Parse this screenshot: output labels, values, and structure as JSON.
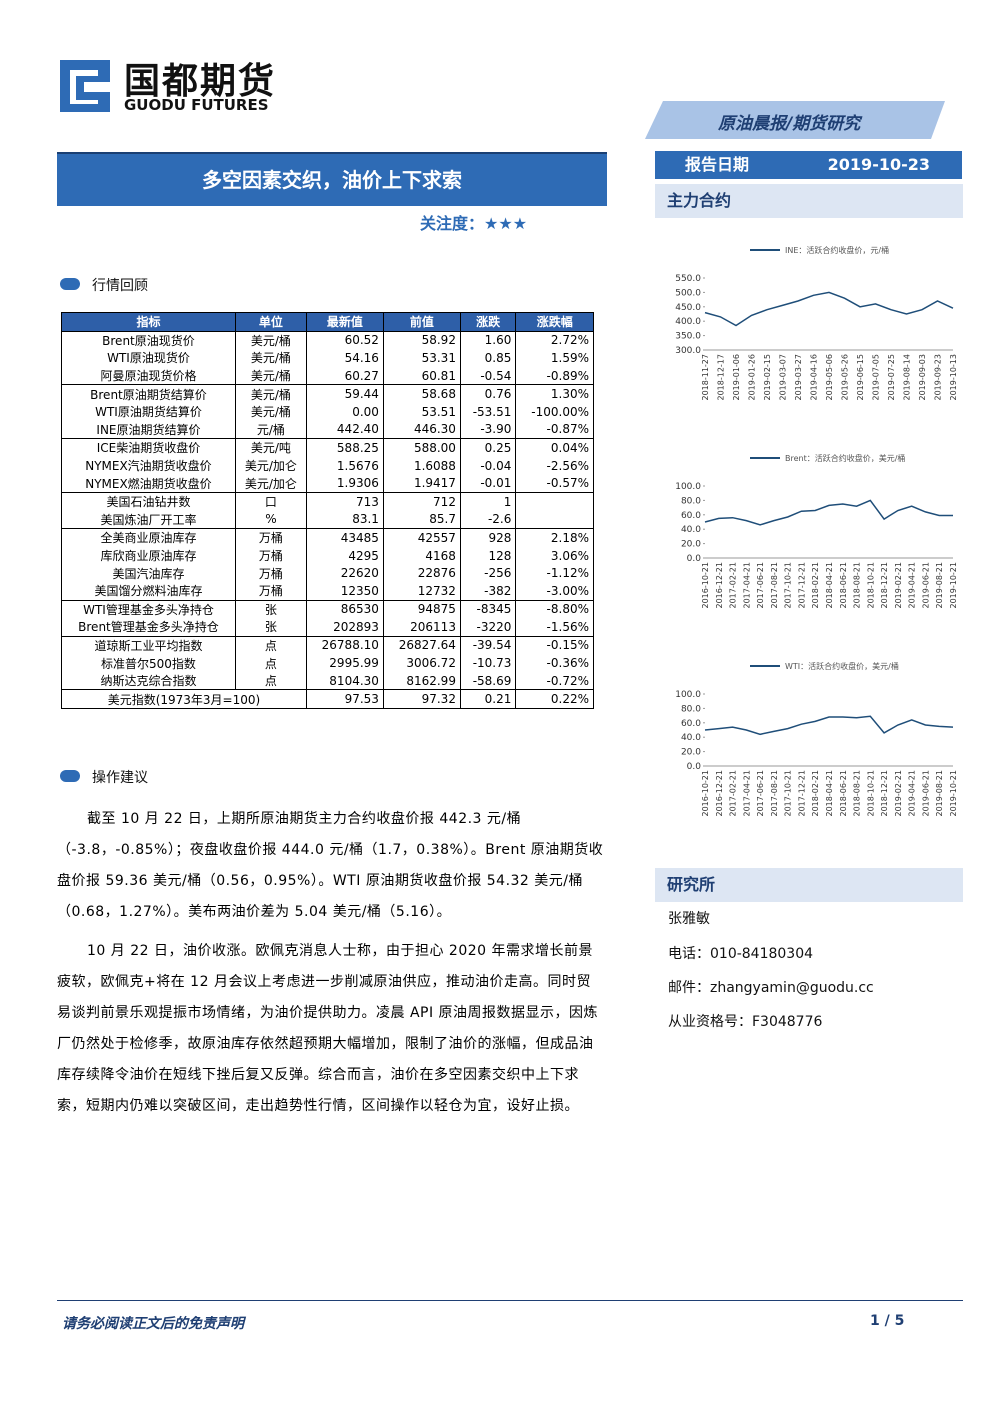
{
  "header": {
    "logo_cn": "国都期货",
    "logo_en": "GUODU FUTURES",
    "tag": "原油晨报/期货研究"
  },
  "title": "多空因素交织，油价上下求索",
  "attention": "关注度：★★★",
  "report_date": {
    "label": "报告日期",
    "value": "2019-10-23"
  },
  "main_contract": "主力合约",
  "chart_data": [
    {
      "type": "line",
      "legend": "INE：活跃合约收盘价，元/桶",
      "categories": [
        "2018-11-27",
        "2018-12-17",
        "2019-01-06",
        "2019-01-26",
        "2019-02-15",
        "2019-03-07",
        "2019-03-27",
        "2019-04-16",
        "2019-05-06",
        "2019-05-26",
        "2019-06-15",
        "2019-07-05",
        "2019-07-25",
        "2019-08-14",
        "2019-09-03",
        "2019-09-23",
        "2019-10-13"
      ],
      "series": [
        {
          "name": "INE",
          "color": "#1f4e79",
          "values": [
            430,
            415,
            385,
            420,
            440,
            455,
            470,
            490,
            500,
            480,
            450,
            460,
            440,
            425,
            440,
            470,
            445
          ]
        }
      ],
      "ylim": [
        300,
        550
      ],
      "yticks": [
        {
          "value": 300,
          "label": "300.0"
        },
        {
          "value": 350,
          "label": "350.0"
        },
        {
          "value": 400,
          "label": "400.0"
        },
        {
          "value": 450,
          "label": "450.0"
        },
        {
          "value": 500,
          "label": "500.0"
        },
        {
          "value": 550,
          "label": "550.0"
        }
      ]
    },
    {
      "type": "line",
      "legend": "Brent：活跃合约收盘价，美元/桶",
      "categories": [
        "2016-10-21",
        "2016-12-21",
        "2017-02-21",
        "2017-04-21",
        "2017-06-21",
        "2017-08-21",
        "2017-10-21",
        "2017-12-21",
        "2018-02-21",
        "2018-04-21",
        "2018-06-21",
        "2018-08-21",
        "2018-10-21",
        "2018-12-21",
        "2019-02-21",
        "2019-04-21",
        "2019-06-21",
        "2019-08-21",
        "2019-10-21"
      ],
      "series": [
        {
          "name": "Brent",
          "color": "#1f4e79",
          "values": [
            50,
            55,
            56,
            52,
            46,
            52,
            57,
            65,
            66,
            73,
            75,
            72,
            80,
            54,
            66,
            72,
            64,
            59,
            59
          ]
        }
      ],
      "ylim": [
        0,
        100
      ],
      "yticks": [
        {
          "value": 0,
          "label": "0.0"
        },
        {
          "value": 20,
          "label": "20.0"
        },
        {
          "value": 40,
          "label": "40.0"
        },
        {
          "value": 60,
          "label": "60.0"
        },
        {
          "value": 80,
          "label": "80.0"
        },
        {
          "value": 100,
          "label": "100.0"
        }
      ]
    },
    {
      "type": "line",
      "legend": "WTI：活跃合约收盘价，美元/桶",
      "categories": [
        "2016-10-21",
        "2016-12-21",
        "2017-02-21",
        "2017-04-21",
        "2017-06-21",
        "2017-08-21",
        "2017-10-21",
        "2017-12-21",
        "2018-02-21",
        "2018-04-21",
        "2018-06-21",
        "2018-08-21",
        "2018-10-21",
        "2018-12-21",
        "2019-02-21",
        "2019-04-21",
        "2019-06-21",
        "2019-08-21",
        "2019-10-21"
      ],
      "series": [
        {
          "name": "WTI",
          "color": "#1f4e79",
          "values": [
            50,
            52,
            54,
            50,
            44,
            48,
            52,
            58,
            62,
            68,
            68,
            67,
            69,
            46,
            57,
            64,
            57,
            55,
            54
          ]
        }
      ],
      "ylim": [
        0,
        100
      ],
      "yticks": [
        {
          "value": 0,
          "label": "0.0"
        },
        {
          "value": 20,
          "label": "20.0"
        },
        {
          "value": 40,
          "label": "40.0"
        },
        {
          "value": 60,
          "label": "60.0"
        },
        {
          "value": 80,
          "label": "80.0"
        },
        {
          "value": 100,
          "label": "100.0"
        }
      ]
    }
  ],
  "market_review": "行情回顾",
  "table": {
    "columns": [
      "指标",
      "单位",
      "最新值",
      "前值",
      "涨跌",
      "涨跌幅"
    ],
    "groups": [
      [
        [
          "Brent原油现货价",
          "美元/桶",
          "60.52",
          "58.92",
          "1.60",
          "2.72%"
        ],
        [
          "WTI原油现货价",
          "美元/桶",
          "54.16",
          "53.31",
          "0.85",
          "1.59%"
        ],
        [
          "阿曼原油现货价格",
          "美元/桶",
          "60.27",
          "60.81",
          "-0.54",
          "-0.89%"
        ]
      ],
      [
        [
          "Brent原油期货结算价",
          "美元/桶",
          "59.44",
          "58.68",
          "0.76",
          "1.30%"
        ],
        [
          "WTI原油期货结算价",
          "美元/桶",
          "0.00",
          "53.51",
          "-53.51",
          "-100.00%"
        ],
        [
          "INE原油期货结算价",
          "元/桶",
          "442.40",
          "446.30",
          "-3.90",
          "-0.87%"
        ]
      ],
      [
        [
          "ICE柴油期货收盘价",
          "美元/吨",
          "588.25",
          "588.00",
          "0.25",
          "0.04%"
        ],
        [
          "NYMEX汽油期货收盘价",
          "美元/加仑",
          "1.5676",
          "1.6088",
          "-0.04",
          "-2.56%"
        ],
        [
          "NYMEX燃油期货收盘价",
          "美元/加仑",
          "1.9306",
          "1.9417",
          "-0.01",
          "-0.57%"
        ]
      ],
      [
        [
          "美国石油钻井数",
          "口",
          "713",
          "712",
          "1"
        ],
        [
          "美国炼油厂开工率",
          "%",
          "83.1",
          "85.7",
          "-2.6"
        ]
      ],
      [
        [
          "全美商业原油库存",
          "万桶",
          "43485",
          "42557",
          "928",
          "2.18%"
        ],
        [
          "库欣商业原油库存",
          "万桶",
          "4295",
          "4168",
          "128",
          "3.06%"
        ],
        [
          "美国汽油库存",
          "万桶",
          "22620",
          "22876",
          "-256",
          "-1.12%"
        ],
        [
          "美国馏分燃料油库存",
          "万桶",
          "12350",
          "12732",
          "-382",
          "-3.00%"
        ]
      ],
      [
        [
          "WTI管理基金多头净持仓",
          "张",
          "86530",
          "94875",
          "-8345",
          "-8.80%"
        ],
        [
          "Brent管理基金多头净持仓",
          "张",
          "202893",
          "206113",
          "-3220",
          "-1.56%"
        ]
      ],
      [
        [
          "道琼斯工业平均指数",
          "点",
          "26788.10",
          "26827.64",
          "-39.54",
          "-0.15%"
        ],
        [
          "标准普尔500指数",
          "点",
          "2995.99",
          "3006.72",
          "-10.73",
          "-0.36%"
        ],
        [
          "纳斯达克综合指数",
          "点",
          "8104.30",
          "8162.99",
          "-58.69",
          "-0.72%"
        ]
      ]
    ],
    "footer_row": [
      "美元指数(1973年3月=100)",
      "97.53",
      "97.32",
      "0.21",
      "0.22%"
    ]
  },
  "advice": "操作建议",
  "paragraphs": [
    "截至 10 月 22 日，上期所原油期货主力合约收盘价报 442.3 元/桶（-3.8，-0.85%）；夜盘收盘价报 444.0 元/桶（1.7，0.38%）。Brent 原油期货收盘价报 59.36 美元/桶（0.56，0.95%）。WTI 原油期货收盘价报 54.32 美元/桶（0.68，1.27%）。美布两油价差为 5.04 美元/桶（5.16）。",
    "10 月 22 日，油价收涨。欧佩克消息人士称，由于担心 2020 年需求增长前景疲软，欧佩克+将在 12 月会议上考虑进一步削减原油供应，推动油价走高。同时贸易谈判前景乐观提振市场情绪，为油价提供助力。凌晨 API 原油周报数据显示，因炼厂仍然处于检修季，故原油库存依然超预期大幅增加，限制了油价的涨幅，但成品油库存续降令油价在短线下挫后复又反弹。综合而言，油价在多空因素交织中上下求索，短期内仍难以突破区间，走出趋势性行情，区间操作以轻仓为宜，设好止损。"
  ],
  "institute": {
    "title": "研究所",
    "name": "张雅敏",
    "phone": "电话：010-84180304",
    "email": "邮件：zhangyamin@guodu.cc",
    "license": "从业资格号：F3048776"
  },
  "footer": {
    "disclaimer": "请务必阅读正文后的免责声明",
    "page": "1 / 5"
  }
}
